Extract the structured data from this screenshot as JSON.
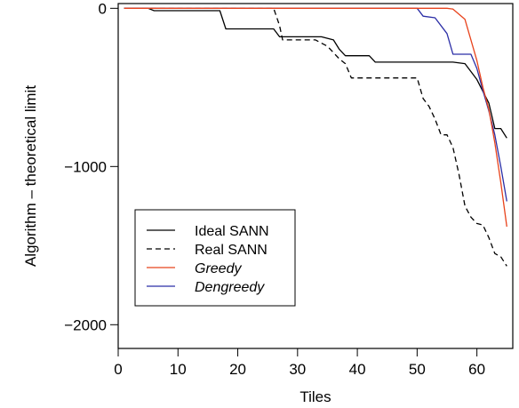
{
  "chart_data": {
    "type": "line",
    "title": "",
    "xlabel": "Tiles",
    "ylabel": "Algorithm – theoretical limit",
    "xlim": [
      0,
      66
    ],
    "ylim": [
      -2150,
      30
    ],
    "x_ticks": [
      0,
      10,
      20,
      30,
      40,
      50,
      60
    ],
    "x_tick_labels": [
      "0",
      "10",
      "20",
      "30",
      "40",
      "50",
      "60"
    ],
    "y_ticks": [
      0,
      -1000,
      -2000
    ],
    "y_tick_labels": [
      "0",
      "−1000",
      "−2000"
    ],
    "grid": false,
    "legend_position": "bottom-left",
    "series": [
      {
        "name": "Ideal SANN",
        "color": "#000000",
        "dash": "solid",
        "italic": false,
        "points": [
          [
            1,
            0
          ],
          [
            5,
            0
          ],
          [
            6,
            -15
          ],
          [
            17,
            -15
          ],
          [
            18,
            -130
          ],
          [
            26,
            -130
          ],
          [
            27,
            -180
          ],
          [
            34,
            -180
          ],
          [
            36,
            -200
          ],
          [
            37,
            -260
          ],
          [
            38,
            -300
          ],
          [
            42,
            -300
          ],
          [
            43,
            -340
          ],
          [
            56,
            -340
          ],
          [
            58,
            -350
          ],
          [
            60,
            -450
          ],
          [
            62,
            -600
          ],
          [
            63,
            -760
          ],
          [
            64,
            -760
          ],
          [
            65,
            -820
          ]
        ]
      },
      {
        "name": "Real SANN",
        "color": "#000000",
        "dash": "dashed",
        "italic": false,
        "points": [
          [
            1,
            0
          ],
          [
            26,
            0
          ],
          [
            27,
            -110
          ],
          [
            27.5,
            -200
          ],
          [
            33,
            -200
          ],
          [
            35,
            -240
          ],
          [
            37,
            -320
          ],
          [
            38,
            -350
          ],
          [
            39,
            -440
          ],
          [
            50,
            -440
          ],
          [
            51,
            -570
          ],
          [
            52,
            -620
          ],
          [
            53,
            -700
          ],
          [
            54,
            -800
          ],
          [
            55,
            -800
          ],
          [
            56,
            -880
          ],
          [
            57,
            -1050
          ],
          [
            58,
            -1250
          ],
          [
            59,
            -1320
          ],
          [
            60,
            -1360
          ],
          [
            61,
            -1370
          ],
          [
            62,
            -1450
          ],
          [
            63,
            -1550
          ],
          [
            64,
            -1570
          ],
          [
            65,
            -1630
          ]
        ]
      },
      {
        "name": "Greedy",
        "color": "#e8431c",
        "dash": "solid",
        "italic": true,
        "points": [
          [
            1,
            0
          ],
          [
            55,
            0
          ],
          [
            56,
            -5
          ],
          [
            58,
            -70
          ],
          [
            59,
            -200
          ],
          [
            60,
            -330
          ],
          [
            61,
            -500
          ],
          [
            62,
            -640
          ],
          [
            63,
            -850
          ],
          [
            64,
            -1100
          ],
          [
            65,
            -1380
          ]
        ]
      },
      {
        "name": "Dengreedy",
        "color": "#2b2ea6",
        "dash": "solid",
        "italic": true,
        "points": [
          [
            1,
            0
          ],
          [
            50,
            0
          ],
          [
            51,
            -50
          ],
          [
            53,
            -60
          ],
          [
            55,
            -160
          ],
          [
            56,
            -290
          ],
          [
            59,
            -290
          ],
          [
            60,
            -380
          ],
          [
            61,
            -520
          ],
          [
            62,
            -650
          ],
          [
            63,
            -800
          ],
          [
            64,
            -1000
          ],
          [
            65,
            -1220
          ]
        ]
      }
    ]
  }
}
